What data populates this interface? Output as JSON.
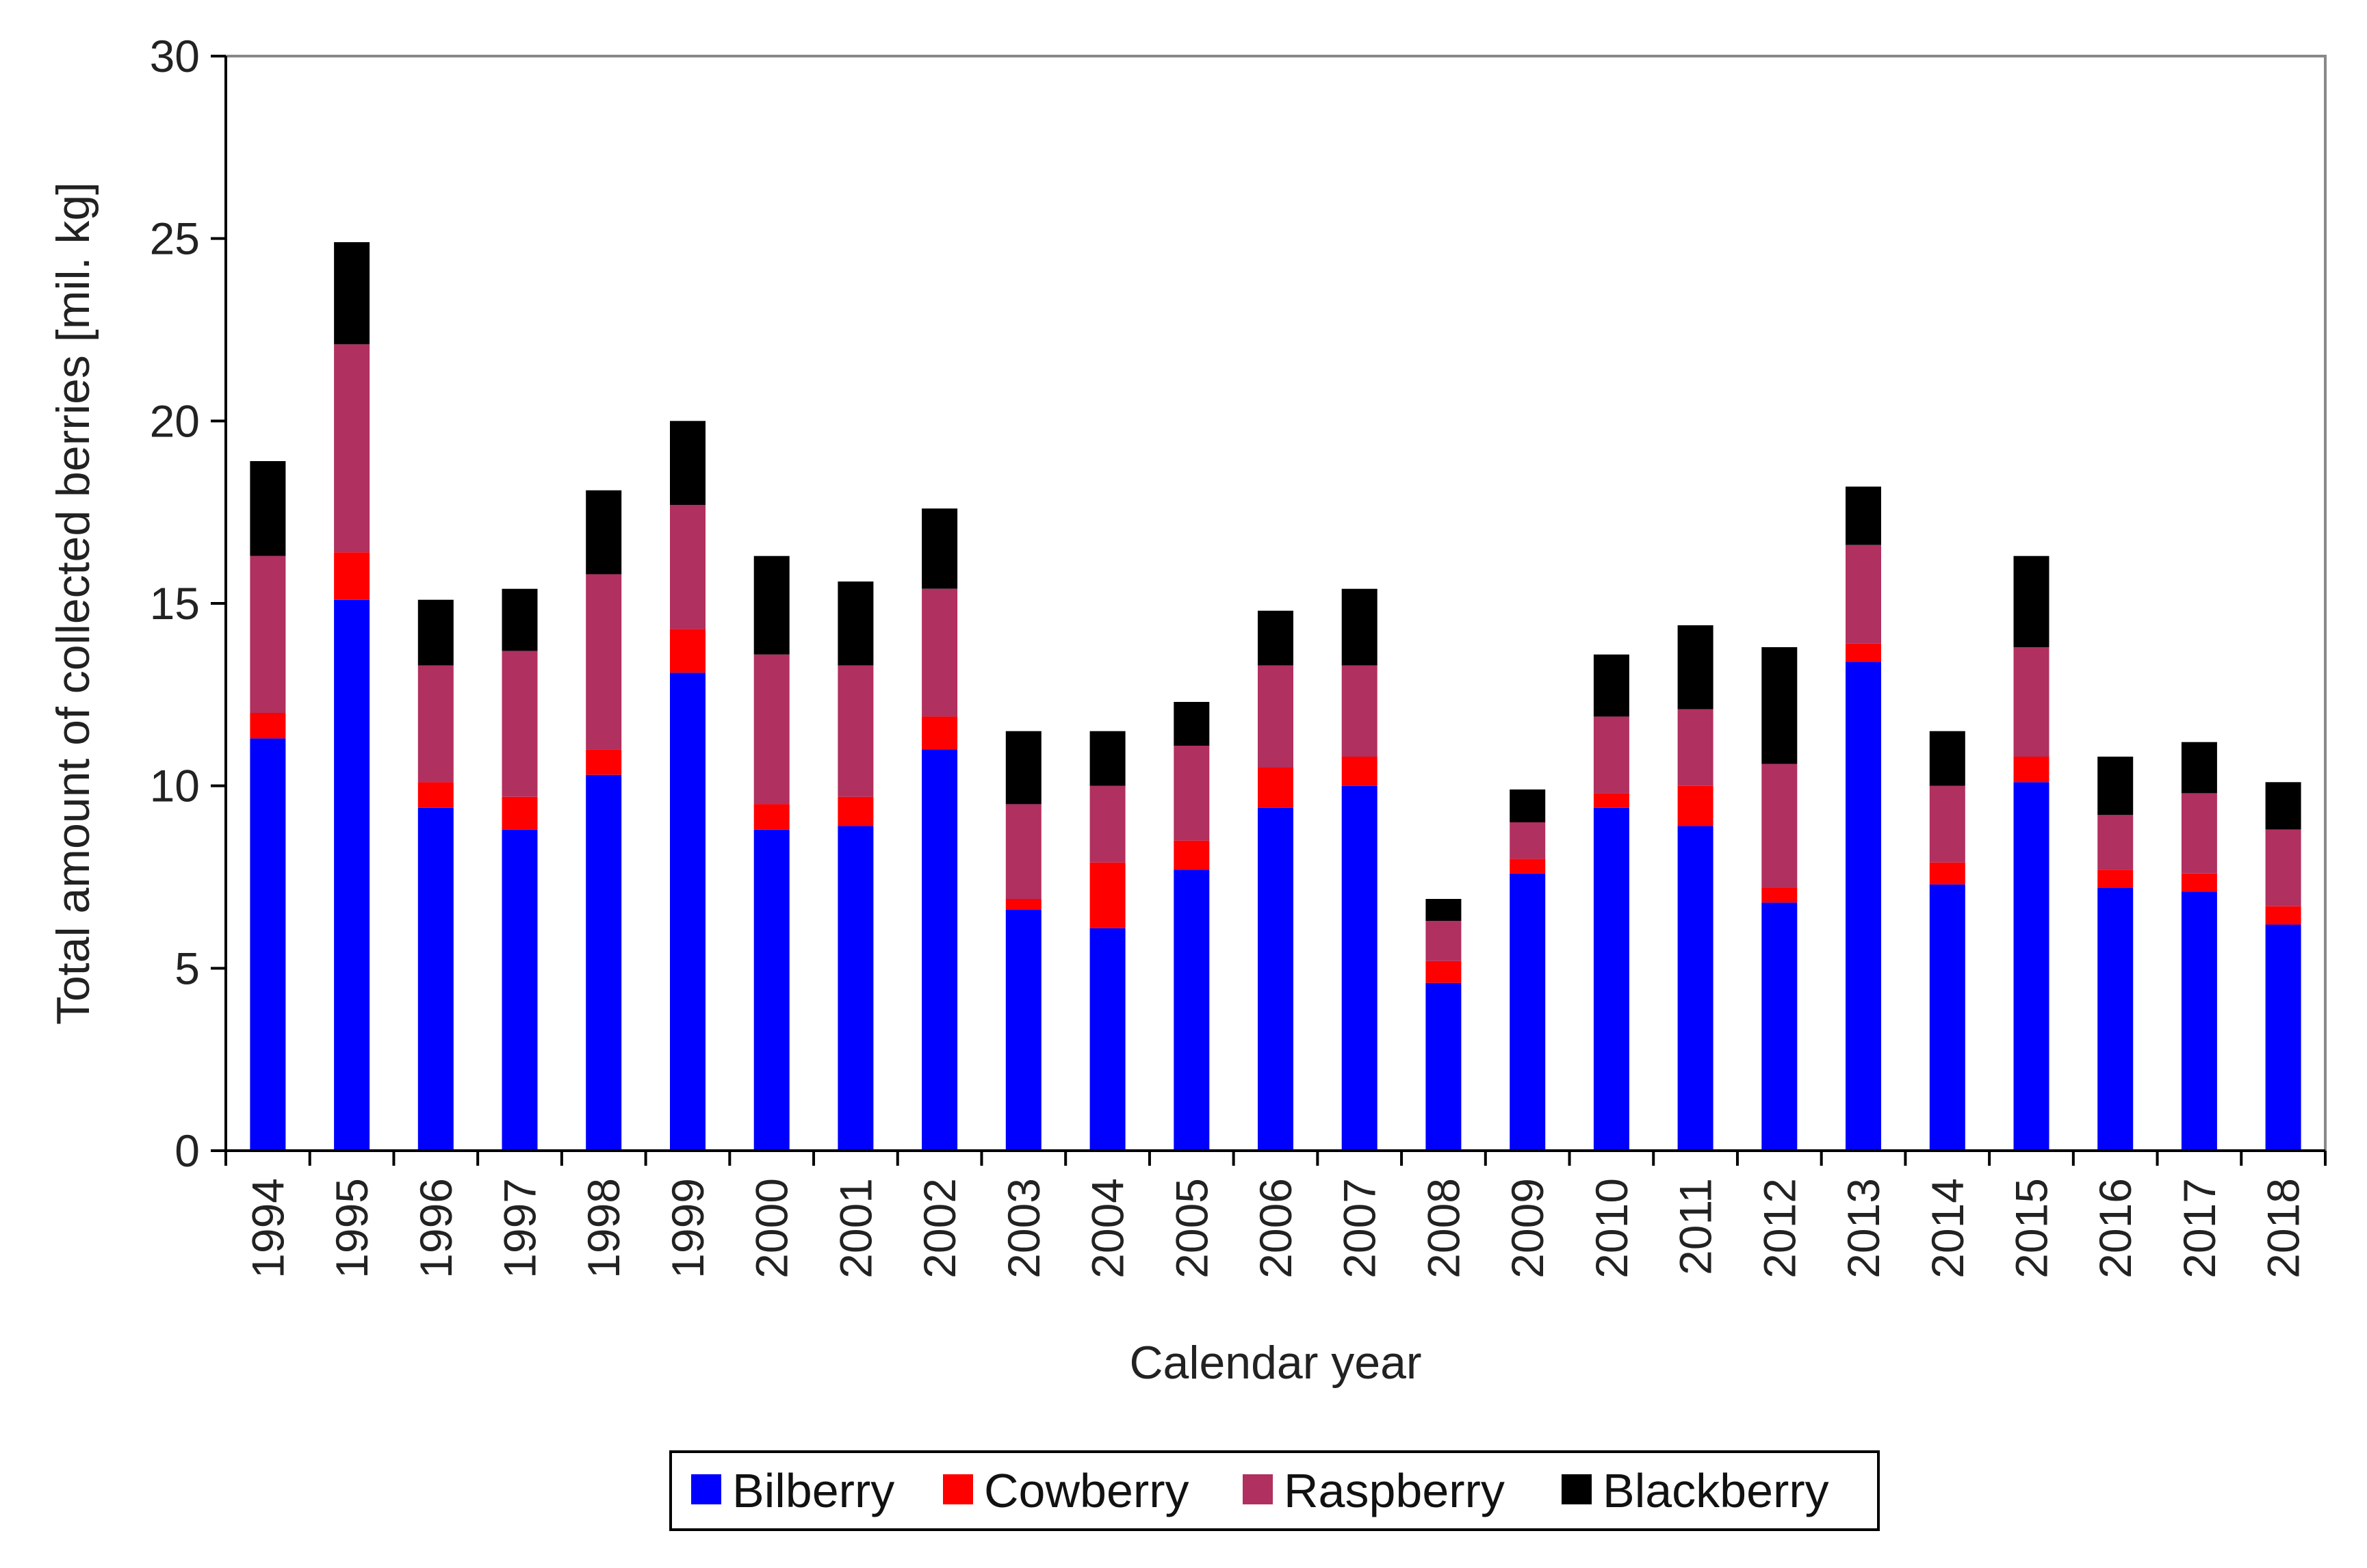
{
  "chart_data": {
    "type": "bar",
    "stacked": true,
    "title": "",
    "xlabel": "Calendar year",
    "ylabel": "Total amount of collected berries [mil. kg]",
    "ylim": [
      0,
      30
    ],
    "yticks": [
      0,
      5,
      10,
      15,
      20,
      25,
      30
    ],
    "ytick_labels": [
      "0",
      "5",
      "10",
      "15",
      "20",
      "25",
      "30"
    ],
    "grid": false,
    "legend_position": "bottom",
    "categories": [
      "1994",
      "1995",
      "1996",
      "1997",
      "1998",
      "1999",
      "2000",
      "2001",
      "2002",
      "2003",
      "2004",
      "2005",
      "2006",
      "2007",
      "2008",
      "2009",
      "2010",
      "2011",
      "2012",
      "2013",
      "2014",
      "2015",
      "2016",
      "2017",
      "2018"
    ],
    "series": [
      {
        "name": "Bilberry",
        "color": "#0000ff",
        "values": [
          11.3,
          15.1,
          9.4,
          8.8,
          10.3,
          13.1,
          8.8,
          8.9,
          11.0,
          6.6,
          6.1,
          7.7,
          9.4,
          10.0,
          4.6,
          7.6,
          9.4,
          8.9,
          6.8,
          13.4,
          7.3,
          10.1,
          7.2,
          7.1,
          6.2
        ]
      },
      {
        "name": "Cowberry",
        "color": "#ff0000",
        "values": [
          0.7,
          1.3,
          0.7,
          0.9,
          0.7,
          1.2,
          0.7,
          0.8,
          0.9,
          0.3,
          1.8,
          0.8,
          1.1,
          0.8,
          0.6,
          0.4,
          0.4,
          1.1,
          0.4,
          0.5,
          0.6,
          0.7,
          0.5,
          0.5,
          0.5
        ]
      },
      {
        "name": "Raspberry",
        "color": "#b03060",
        "values": [
          4.3,
          5.7,
          3.2,
          4.0,
          4.8,
          3.4,
          4.1,
          3.6,
          3.5,
          2.6,
          2.1,
          2.6,
          2.8,
          2.5,
          1.1,
          1.0,
          2.1,
          2.1,
          3.4,
          2.7,
          2.1,
          3.0,
          1.5,
          2.2,
          2.1
        ]
      },
      {
        "name": "Blackberry",
        "color": "#000000",
        "values": [
          2.6,
          2.8,
          1.8,
          1.7,
          2.3,
          2.3,
          2.7,
          2.3,
          2.2,
          2.0,
          1.5,
          1.2,
          1.5,
          2.1,
          0.6,
          0.9,
          1.7,
          2.3,
          3.2,
          1.6,
          1.5,
          2.5,
          1.6,
          1.4,
          1.3
        ]
      }
    ]
  }
}
